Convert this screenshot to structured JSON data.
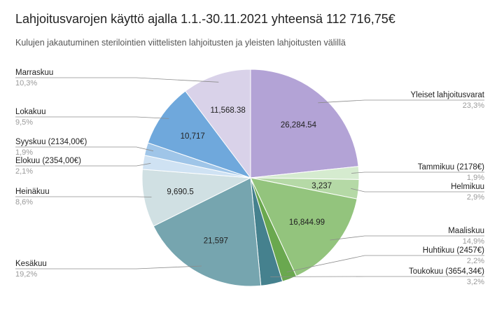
{
  "chart_data": {
    "type": "pie",
    "title": "Lahjoitusvarojen käyttö ajalla 1.1.-30.11.2021 yhteensä 112 716,75€",
    "subtitle": "Kulujen jakautuminen sterilointien viittelisten lahjoitusten ja yleisten lahjoitusten välillä",
    "slices": [
      {
        "name": "Yleiset lahjoitusvarat",
        "value": 26284.54,
        "value_label": "26,284.54",
        "percent_label": "23,3%",
        "color": "#b3a3d6"
      },
      {
        "name": "Tammikuu (2178€)",
        "value": 2178,
        "value_label": "",
        "percent_label": "1,9%",
        "color": "#d5ebcf"
      },
      {
        "name": "Helmikuu",
        "value": 3237,
        "value_label": "3,237",
        "percent_label": "2,9%",
        "color": "#b5d9a6"
      },
      {
        "name": "Maaliskuu",
        "value": 16844.99,
        "value_label": "16,844.99",
        "percent_label": "14,9%",
        "color": "#93c47d"
      },
      {
        "name": "Huhtikuu (2457€)",
        "value": 2457,
        "value_label": "",
        "percent_label": "2,2%",
        "color": "#6aa84f"
      },
      {
        "name": "Toukokuu (3654,34€)",
        "value": 3654.34,
        "value_label": "",
        "percent_label": "3,2%",
        "color": "#45818e"
      },
      {
        "name": "Kesäkuu",
        "value": 21597,
        "value_label": "21,597",
        "percent_label": "19,2%",
        "color": "#76a5af"
      },
      {
        "name": "Heinäkuu",
        "value": 9690.5,
        "value_label": "9,690.5",
        "percent_label": "8,6%",
        "color": "#d0e0e3"
      },
      {
        "name": "Elokuu (2354,00€)",
        "value": 2354,
        "value_label": "",
        "percent_label": "2,1%",
        "color": "#cfe2f3"
      },
      {
        "name": "Syyskuu (2134,00€)",
        "value": 2134,
        "value_label": "",
        "percent_label": "1,9%",
        "color": "#9fc5e8"
      },
      {
        "name": "Lokakuu",
        "value": 10717,
        "value_label": "10,717",
        "percent_label": "9,5%",
        "color": "#6fa8dc"
      },
      {
        "name": "Marraskuu",
        "value": 11568.38,
        "value_label": "11,568.38",
        "percent_label": "10,3%",
        "color": "#d9d2e9"
      }
    ]
  }
}
